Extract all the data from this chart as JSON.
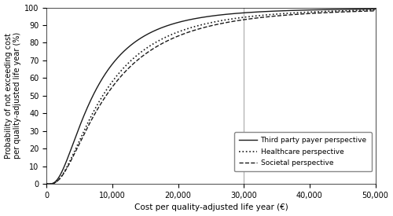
{
  "title": "",
  "xlabel": "Cost per quality-adjusted life year (€)",
  "ylabel": "Probability of not exceeding cost\nper quality-adjusted life year (%)",
  "xlim": [
    0,
    50000
  ],
  "ylim": [
    0,
    100
  ],
  "xticks": [
    0,
    10000,
    20000,
    30000,
    40000,
    50000
  ],
  "xtick_labels": [
    "0",
    "10,000",
    "20,000",
    "30,000",
    "40,000",
    "50,000"
  ],
  "yticks": [
    0,
    10,
    20,
    30,
    40,
    50,
    60,
    70,
    80,
    90,
    100
  ],
  "threshold_x": 30000,
  "threshold_color": "#b0b0b0",
  "line_color": "#1a1a1a",
  "legend_labels": [
    "Third party payer perspective",
    "Healthcare perspective",
    "Societal perspective"
  ],
  "figsize": [
    5.0,
    2.75
  ],
  "dpi": 100,
  "curve_tpp_params": {
    "mu": 8000,
    "sigma": 2800,
    "max_val": 99.6
  },
  "curve_hc_params": {
    "mu": 9500,
    "sigma": 3000,
    "max_val": 99.75
  },
  "curve_soc_params": {
    "mu": 10500,
    "sigma": 3200,
    "max_val": 99.7
  }
}
